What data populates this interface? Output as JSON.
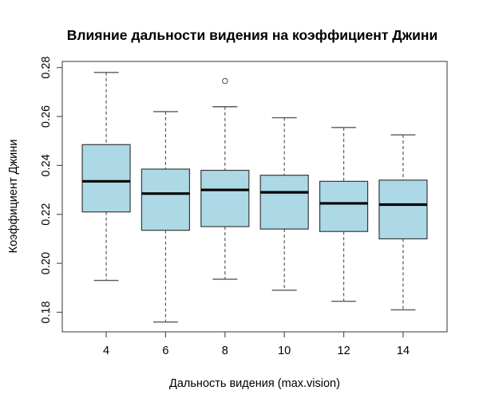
{
  "chart_data": {
    "type": "boxplot",
    "title": "Влияние дальности видения на коэффициент Джини",
    "xlabel": "Дальность видения (max.vision)",
    "ylabel": "Коэффициент Джини",
    "categories": [
      "4",
      "6",
      "8",
      "10",
      "12",
      "14"
    ],
    "y_ticks": [
      0.18,
      0.2,
      0.22,
      0.24,
      0.26,
      0.28
    ],
    "ylim": [
      0.172,
      0.2825
    ],
    "grid": false,
    "legend": false,
    "series": [
      {
        "category": "4",
        "lower_whisker": 0.193,
        "q1": 0.221,
        "median": 0.2335,
        "q3": 0.2485,
        "upper_whisker": 0.278,
        "outliers": []
      },
      {
        "category": "6",
        "lower_whisker": 0.176,
        "q1": 0.2135,
        "median": 0.2285,
        "q3": 0.2385,
        "upper_whisker": 0.262,
        "outliers": []
      },
      {
        "category": "8",
        "lower_whisker": 0.1935,
        "q1": 0.215,
        "median": 0.23,
        "q3": 0.238,
        "upper_whisker": 0.264,
        "outliers": [
          0.2745
        ]
      },
      {
        "category": "10",
        "lower_whisker": 0.189,
        "q1": 0.214,
        "median": 0.229,
        "q3": 0.236,
        "upper_whisker": 0.2595,
        "outliers": []
      },
      {
        "category": "12",
        "lower_whisker": 0.1845,
        "q1": 0.213,
        "median": 0.2245,
        "q3": 0.2335,
        "upper_whisker": 0.2555,
        "outliers": []
      },
      {
        "category": "14",
        "lower_whisker": 0.181,
        "q1": 0.21,
        "median": 0.224,
        "q3": 0.234,
        "upper_whisker": 0.2525,
        "outliers": []
      }
    ],
    "style": {
      "box_fill": "#ADD8E6",
      "box_border": "#3a3a3a",
      "median_color": "#000000",
      "whisker_color": "#5a5a5a",
      "frame_color": "#555555",
      "tick_color": "#555555",
      "text_color": "#000000",
      "background": "#FFFFFF"
    }
  }
}
